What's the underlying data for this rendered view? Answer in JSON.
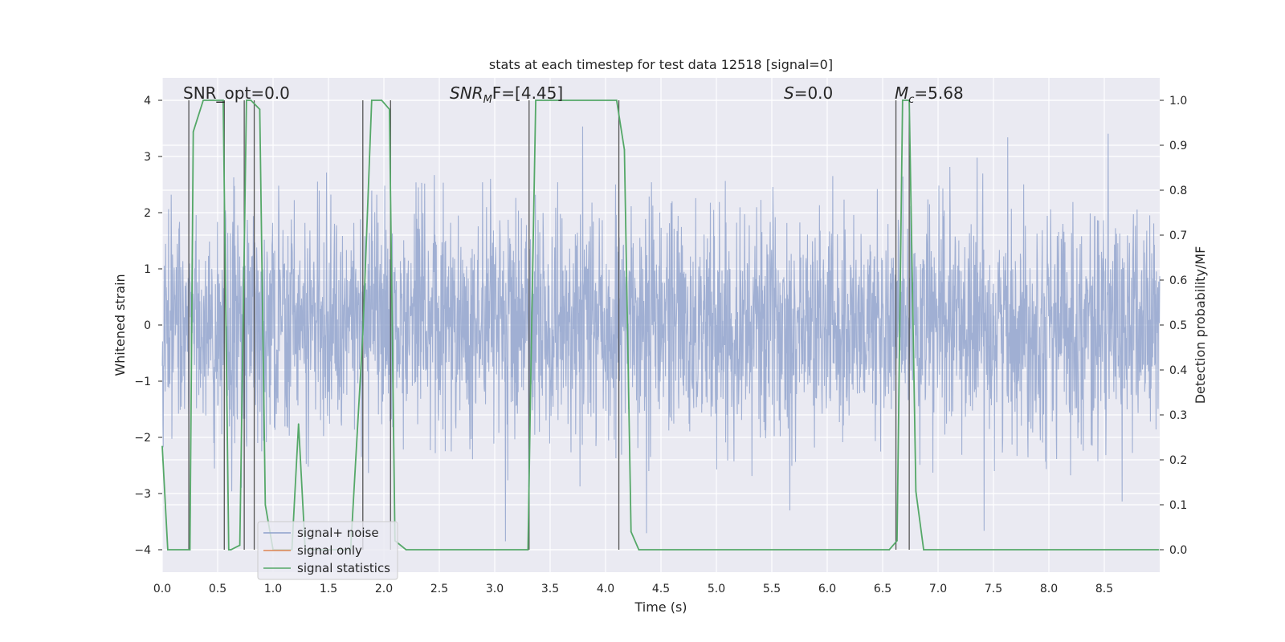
{
  "chart_data": {
    "type": "line",
    "title": "stats at each timestep for test data 12518 [signal=0]",
    "xlabel": "Time (s)",
    "ylabel": "Whitened strain",
    "y2label": "Detection probability/MF",
    "xlim": [
      0,
      9.0
    ],
    "ylim": [
      -4.4,
      4.4
    ],
    "y2lim": [
      -0.05,
      1.05
    ],
    "grid": true,
    "legend_position": "bottom-left",
    "x_ticks": [
      "0.0",
      "0.5",
      "1.0",
      "1.5",
      "2.0",
      "2.5",
      "3.0",
      "3.5",
      "4.0",
      "4.5",
      "5.0",
      "5.5",
      "6.0",
      "6.5",
      "7.0",
      "7.5",
      "8.0",
      "8.5"
    ],
    "y_ticks": [
      "−4",
      "−3",
      "−2",
      "−1",
      "0",
      "1",
      "2",
      "3",
      "4"
    ],
    "y2_ticks": [
      "0.0",
      "0.1",
      "0.2",
      "0.3",
      "0.4",
      "0.5",
      "0.6",
      "0.7",
      "0.8",
      "0.9",
      "1.0"
    ],
    "annotations": {
      "snr_opt": "SNR_opt=0.0",
      "snr_mf_sym": "SNR",
      "snr_mf_sub": "M",
      "snr_mf_rest": "F=[4.45]",
      "s_sym": "S",
      "s_val": "=0.0",
      "mc_sym": "M",
      "mc_sub": "c",
      "mc_val": "=5.68"
    },
    "series": [
      {
        "name": "signal+ noise",
        "color": "#8da0cb",
        "description_range": [
          -4.0,
          4.0
        ]
      },
      {
        "name": "signal only",
        "color": "#dd8452"
      },
      {
        "name": "signal statistics",
        "color": "#55a868",
        "x": [
          0.0,
          0.05,
          0.25,
          0.28,
          0.37,
          0.55,
          0.6,
          0.62,
          0.7,
          0.76,
          0.8,
          0.88,
          0.93,
          1.0,
          1.17,
          1.23,
          1.29,
          1.7,
          1.81,
          1.89,
          1.98,
          2.05,
          2.1,
          2.2,
          3.3,
          3.33,
          3.37,
          4.1,
          4.17,
          4.23,
          4.3,
          6.56,
          6.63,
          6.68,
          6.74,
          6.8,
          6.87,
          8.99
        ],
        "values": [
          0.23,
          0.0,
          0.0,
          0.93,
          1.0,
          1.0,
          0.0,
          0.0,
          0.01,
          1.0,
          1.0,
          0.98,
          0.1,
          0.0,
          0.0,
          0.28,
          0.0,
          0.0,
          0.48,
          1.0,
          1.0,
          0.98,
          0.02,
          0.0,
          0.0,
          0.45,
          1.0,
          1.0,
          0.89,
          0.04,
          0.0,
          0.0,
          0.02,
          1.0,
          1.0,
          0.13,
          0.0,
          0.0
        ]
      }
    ],
    "vertical_lines_x": [
      0.24,
      0.56,
      0.74,
      0.83,
      1.81,
      2.06,
      3.31,
      4.12,
      6.62,
      6.74
    ]
  }
}
